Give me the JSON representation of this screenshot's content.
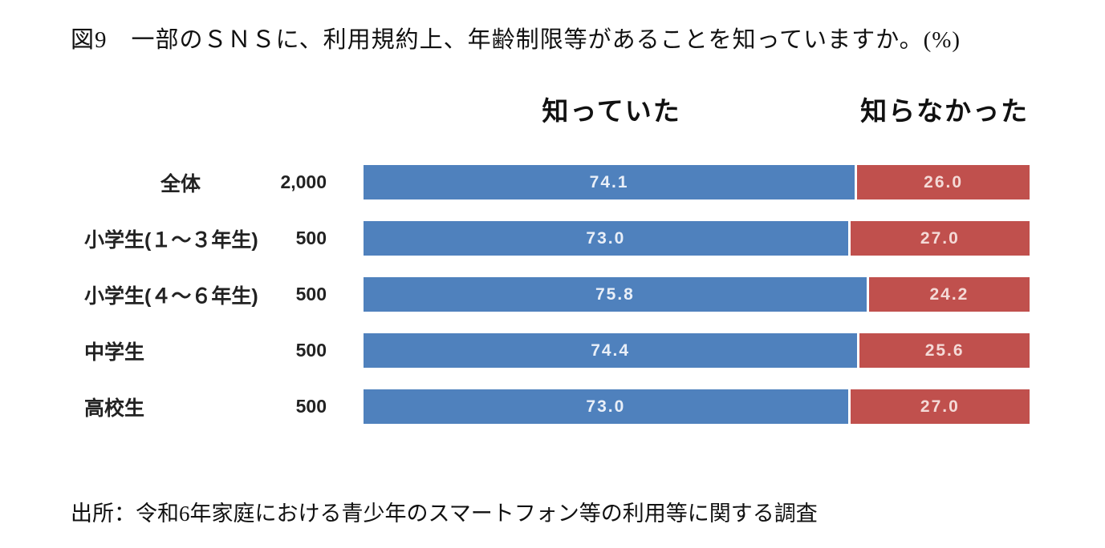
{
  "page": {
    "title": "図9　一部のＳＮＳに、利用規約上、年齢制限等があることを知っていますか。(%)",
    "source": "出所：令和6年家庭における青少年のスマートフォン等の利用等に関する調査"
  },
  "chart": {
    "headers": {
      "knew": "知っていた",
      "not_knew": "知らなかった"
    },
    "colors": {
      "knew_bar": "#4f81bd",
      "not_knew_bar": "#c0504d",
      "knew_value_text": "#e9eff8",
      "not_knew_value_text": "#f4dad7",
      "text": "#111111",
      "background": "#ffffff"
    },
    "rows": [
      {
        "label": "全体",
        "count": "2,000",
        "knew_value": 74.1,
        "knew_label": "74.1",
        "not_knew_value": 26.0,
        "not_knew_label": "26.0"
      },
      {
        "label": "小学生(１～３年生)",
        "count": "500",
        "knew_value": 73.0,
        "knew_label": "73.0",
        "not_knew_value": 27.0,
        "not_knew_label": "27.0"
      },
      {
        "label": "小学生(４～６年生)",
        "count": "500",
        "knew_value": 75.8,
        "knew_label": "75.8",
        "not_knew_value": 24.2,
        "not_knew_label": "24.2"
      },
      {
        "label": "中学生",
        "count": "500",
        "knew_value": 74.4,
        "knew_label": "74.4",
        "not_knew_value": 25.6,
        "not_knew_label": "25.6"
      },
      {
        "label": "高校生",
        "count": "500",
        "knew_value": 73.0,
        "knew_label": "73.0",
        "not_knew_value": 27.0,
        "not_knew_label": "27.0"
      }
    ]
  },
  "chart_data": {
    "type": "bar",
    "orientation": "horizontal",
    "stacked": true,
    "title": "図9　一部のＳＮＳに、利用規約上、年齢制限等があることを知っていますか。(%)",
    "categories": [
      "全体",
      "小学生(１～３年生)",
      "小学生(４～６年生)",
      "中学生",
      "高校生"
    ],
    "sample_sizes": [
      2000,
      500,
      500,
      500,
      500
    ],
    "series": [
      {
        "name": "知っていた",
        "color": "#4f81bd",
        "values": [
          74.1,
          73.0,
          75.8,
          74.4,
          73.0
        ]
      },
      {
        "name": "知らなかった",
        "color": "#c0504d",
        "values": [
          26.0,
          27.0,
          24.2,
          25.6,
          27.0
        ]
      }
    ],
    "unit": "%",
    "xlim": [
      0,
      100
    ],
    "grid": false,
    "legend_position": "top",
    "value_labels": "inside-center",
    "source": "出所：令和6年家庭における青少年のスマートフォン等の利用等に関する調査"
  }
}
